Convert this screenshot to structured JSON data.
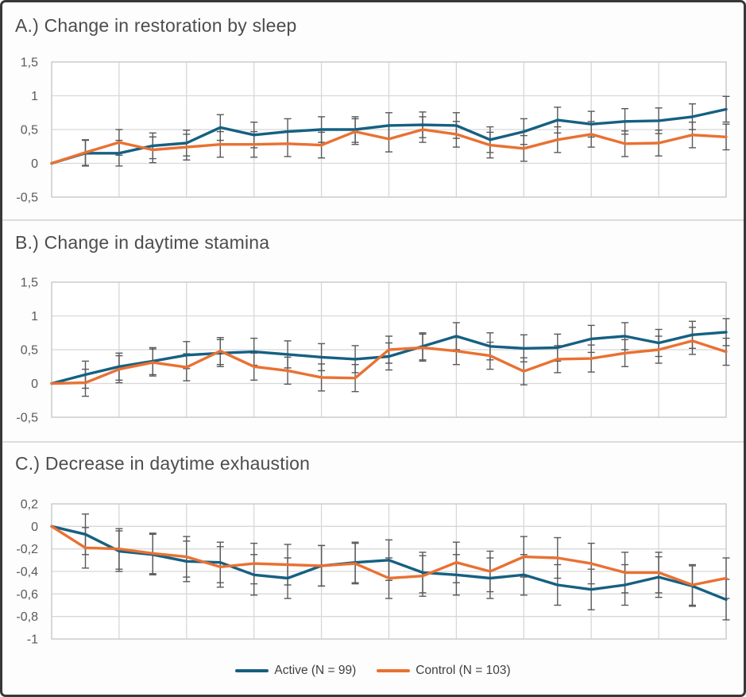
{
  "figure": {
    "description": "Three stacked line chart panels with error bars",
    "background_color": "#FDFDFD",
    "frame_color": "#383838"
  },
  "styles": {
    "gridline_color": "#D8D8D8",
    "plot_border_color": "#C9C9C9",
    "error_bar_color": "#595959",
    "title_color": "#4D4D4D",
    "tick_label_color": "#595959",
    "plot_fill": "#FFFFFF"
  },
  "legend": {
    "position": "bottom-center",
    "items": [
      {
        "label": "Active (N = 99)",
        "color": "#156082"
      },
      {
        "label": "Control (N = 103)",
        "color": "#E97132"
      }
    ]
  },
  "chart_data": [
    {
      "type": "line",
      "panel": "A",
      "title": "A.) Change in restoration by sleep",
      "x": [
        0,
        1,
        2,
        3,
        4,
        5,
        6,
        7,
        8,
        9,
        10,
        11,
        12,
        13,
        14,
        15,
        16,
        17,
        18,
        19,
        20
      ],
      "x_tick_labels": [],
      "ylim": [
        -0.5,
        1.5
      ],
      "grid": true,
      "error_bars": true,
      "yticks": [
        {
          "value": 1.5,
          "label": "1,5"
        },
        {
          "value": 1,
          "label": "1"
        },
        {
          "value": 0.5,
          "label": "0,5"
        },
        {
          "value": 0,
          "label": "0"
        },
        {
          "value": -0.5,
          "label": "-0,5"
        }
      ],
      "series": [
        {
          "name": "Active (N = 99)",
          "color": "#156082",
          "error": 0.19,
          "values": [
            0,
            0.15,
            0.15,
            0.26,
            0.3,
            0.53,
            0.42,
            0.47,
            0.5,
            0.5,
            0.56,
            0.57,
            0.56,
            0.35,
            0.47,
            0.64,
            0.58,
            0.62,
            0.63,
            0.69,
            0.8
          ]
        },
        {
          "name": "Control (N = 103)",
          "color": "#E97132",
          "error": 0.19,
          "values": [
            0,
            0.16,
            0.31,
            0.2,
            0.24,
            0.28,
            0.28,
            0.29,
            0.27,
            0.47,
            0.36,
            0.5,
            0.43,
            0.27,
            0.22,
            0.35,
            0.43,
            0.29,
            0.3,
            0.42,
            0.39
          ]
        }
      ]
    },
    {
      "type": "line",
      "panel": "B",
      "title": "B.) Change in daytime stamina",
      "x": [
        0,
        1,
        2,
        3,
        4,
        5,
        6,
        7,
        8,
        9,
        10,
        11,
        12,
        13,
        14,
        15,
        16,
        17,
        18,
        19,
        20
      ],
      "x_tick_labels": [],
      "ylim": [
        -0.5,
        1.5
      ],
      "grid": true,
      "error_bars": true,
      "yticks": [
        {
          "value": 1.5,
          "label": "1,5"
        },
        {
          "value": 1,
          "label": "1"
        },
        {
          "value": 0.5,
          "label": "0,5"
        },
        {
          "value": 0,
          "label": "0"
        },
        {
          "value": -0.5,
          "label": "-0,5"
        }
      ],
      "series": [
        {
          "name": "Active (N = 99)",
          "color": "#156082",
          "error": 0.2,
          "values": [
            0,
            0.13,
            0.25,
            0.33,
            0.42,
            0.45,
            0.47,
            0.43,
            0.39,
            0.36,
            0.4,
            0.55,
            0.7,
            0.55,
            0.52,
            0.53,
            0.66,
            0.7,
            0.6,
            0.72,
            0.76
          ]
        },
        {
          "name": "Control (N = 103)",
          "color": "#E97132",
          "error": 0.2,
          "values": [
            0,
            0.01,
            0.21,
            0.31,
            0.24,
            0.48,
            0.25,
            0.19,
            0.09,
            0.08,
            0.5,
            0.53,
            0.48,
            0.41,
            0.18,
            0.36,
            0.37,
            0.45,
            0.5,
            0.63,
            0.47
          ]
        }
      ]
    },
    {
      "type": "line",
      "panel": "C",
      "title": "C.) Decrease in daytime exhaustion",
      "x": [
        0,
        1,
        2,
        3,
        4,
        5,
        6,
        7,
        8,
        9,
        10,
        11,
        12,
        13,
        14,
        15,
        16,
        17,
        18,
        19,
        20
      ],
      "x_tick_labels": [],
      "ylim": [
        -1,
        0.2
      ],
      "grid": true,
      "error_bars": true,
      "yticks": [
        {
          "value": 0.2,
          "label": "0,2"
        },
        {
          "value": 0,
          "label": "0"
        },
        {
          "value": -0.2,
          "label": "-0,2"
        },
        {
          "value": -0.4,
          "label": "-0,4"
        },
        {
          "value": -0.6,
          "label": "-0,6"
        },
        {
          "value": -0.8,
          "label": "-0,8"
        },
        {
          "value": -1,
          "label": "-1"
        }
      ],
      "series": [
        {
          "name": "Active (N = 99)",
          "color": "#156082",
          "error": 0.18,
          "values": [
            0,
            -0.07,
            -0.22,
            -0.25,
            -0.31,
            -0.32,
            -0.43,
            -0.46,
            -0.35,
            -0.32,
            -0.3,
            -0.41,
            -0.43,
            -0.46,
            -0.43,
            -0.52,
            -0.56,
            -0.52,
            -0.45,
            -0.53,
            -0.65
          ]
        },
        {
          "name": "Control (N = 103)",
          "color": "#E97132",
          "error": 0.18,
          "values": [
            0,
            -0.19,
            -0.2,
            -0.24,
            -0.27,
            -0.36,
            -0.33,
            -0.34,
            -0.35,
            -0.33,
            -0.46,
            -0.44,
            -0.32,
            -0.4,
            -0.27,
            -0.28,
            -0.33,
            -0.41,
            -0.41,
            -0.52,
            -0.46
          ]
        }
      ]
    }
  ]
}
